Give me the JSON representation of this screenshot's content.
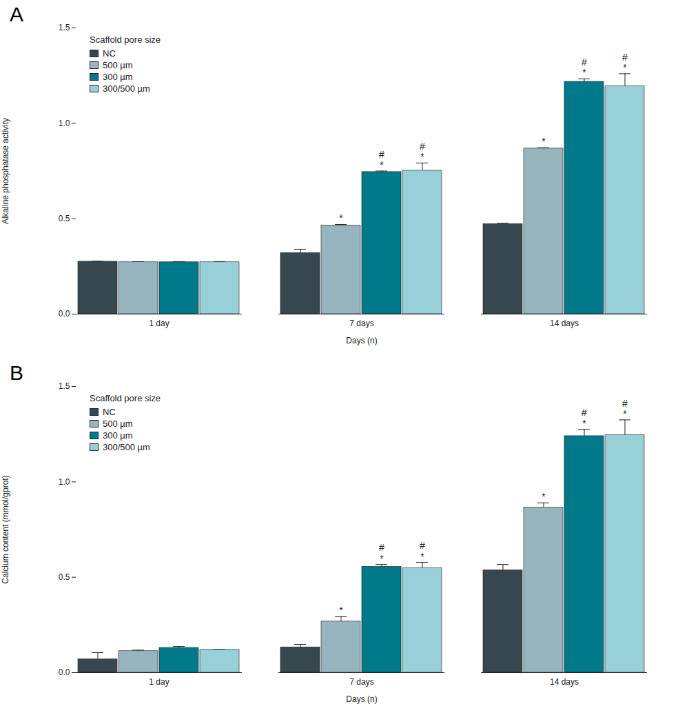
{
  "chart_data": [
    {
      "type": "bar",
      "title": "A",
      "legend_title": "Scaffold pore size",
      "legend": "top-left",
      "x_label": "Days (n)",
      "y_label": "Alkaline phosphatase activity",
      "categories": [
        "1 day",
        "7 days",
        "14 days"
      ],
      "ylim": [
        0,
        1.5
      ],
      "yticks": [
        {
          "value": 0,
          "label": "0.0"
        },
        {
          "value": 0.5,
          "label": "0.5"
        },
        {
          "value": 1,
          "label": "1.0"
        },
        {
          "value": 1.5,
          "label": "1.5"
        }
      ],
      "series": [
        {
          "name": "NC",
          "color": "#37474f",
          "values": [
            0.275,
            0.32,
            0.472
          ],
          "errors": [
            0.002,
            0.02,
            0.004
          ],
          "annotations": [
            [],
            [],
            []
          ]
        },
        {
          "name": "500 µm",
          "color": "#97b5bf",
          "values": [
            0.272,
            0.465,
            0.868
          ],
          "errors": [
            0.003,
            0.005,
            0.004
          ],
          "annotations": [
            [],
            [
              "*"
            ],
            [
              "*"
            ]
          ]
        },
        {
          "name": "300 µm",
          "color": "#007a8a",
          "values": [
            0.272,
            0.745,
            1.218
          ],
          "errors": [
            0.003,
            0.005,
            0.015
          ],
          "annotations": [
            [],
            [
              "#",
              "*"
            ],
            [
              "#",
              "*"
            ]
          ]
        },
        {
          "name": "300/500 µm",
          "color": "#97d0d8",
          "values": [
            0.272,
            0.752,
            1.195
          ],
          "errors": [
            0.003,
            0.04,
            0.065
          ],
          "annotations": [
            [],
            [
              "#",
              "*"
            ],
            [
              "#",
              "*"
            ]
          ]
        }
      ]
    },
    {
      "type": "bar",
      "title": "B",
      "legend_title": "Scaffold pore size",
      "legend": "top-left",
      "x_label": "Days (n)",
      "y_label": "Calcium content (mmol/gprot)",
      "categories": [
        "1 day",
        "7 days",
        "14 days"
      ],
      "ylim": [
        0,
        1.5
      ],
      "yticks": [
        {
          "value": 0,
          "label": "0.0"
        },
        {
          "value": 0.5,
          "label": "0.5"
        },
        {
          "value": 1,
          "label": "1.0"
        },
        {
          "value": 1.5,
          "label": "1.5"
        }
      ],
      "series": [
        {
          "name": "NC",
          "color": "#37474f",
          "values": [
            0.07,
            0.133,
            0.537
          ],
          "errors": [
            0.035,
            0.015,
            0.03
          ],
          "annotations": [
            [],
            [],
            []
          ]
        },
        {
          "name": "500 µm",
          "color": "#97b5bf",
          "values": [
            0.113,
            0.268,
            0.865
          ],
          "errors": [
            0.005,
            0.025,
            0.025
          ],
          "annotations": [
            [],
            [
              "*"
            ],
            [
              "*"
            ]
          ]
        },
        {
          "name": "300 µm",
          "color": "#007a8a",
          "values": [
            0.13,
            0.555,
            1.24
          ],
          "errors": [
            0.007,
            0.012,
            0.035
          ],
          "annotations": [
            [],
            [
              "#",
              "*"
            ],
            [
              "#",
              "*"
            ]
          ]
        },
        {
          "name": "300/500 µm",
          "color": "#97d0d8",
          "values": [
            0.12,
            0.548,
            1.245
          ],
          "errors": [
            0.003,
            0.03,
            0.08
          ],
          "annotations": [
            [],
            [
              "#",
              "*"
            ],
            [
              "#",
              "*"
            ]
          ]
        }
      ]
    }
  ]
}
